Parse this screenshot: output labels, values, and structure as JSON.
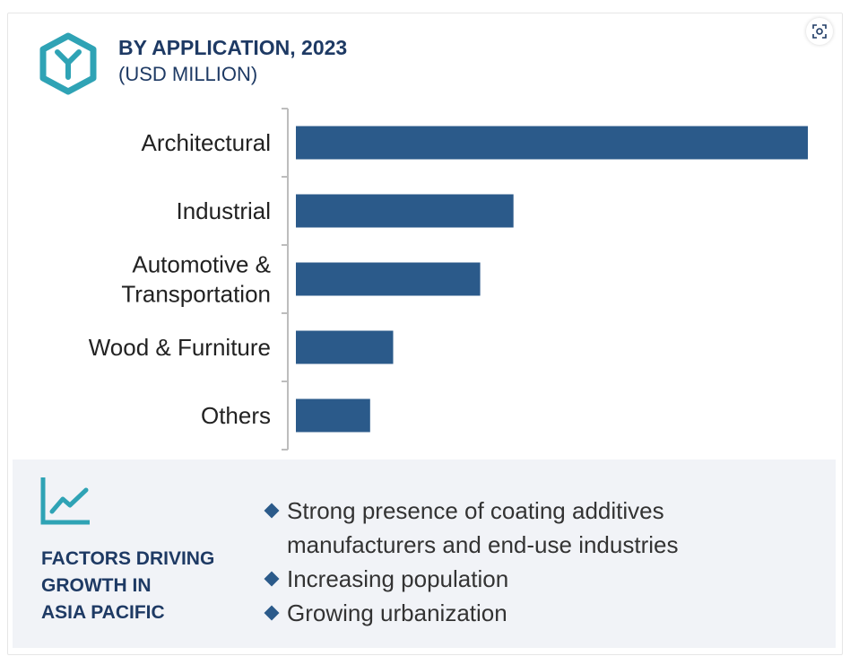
{
  "header": {
    "title": "BY APPLICATION, 2023",
    "subtitle": "(USD MILLION)"
  },
  "icons": {
    "brand": "hexagon-y-logo-icon",
    "zoom": "zoom-scan-icon",
    "growth": "line-chart-growth-icon"
  },
  "colors": {
    "bar": "#2b5a8a",
    "title": "#1e3a64",
    "logo": "#2fa3b5",
    "panel": "#f1f3f7"
  },
  "chart_data": {
    "type": "bar",
    "orientation": "horizontal",
    "title": "BY APPLICATION, 2023",
    "subtitle": "(USD MILLION)",
    "categories": [
      [
        "Architectural"
      ],
      [
        "Industrial"
      ],
      [
        "Automotive &",
        "Transportation"
      ],
      [
        "Wood & Furniture"
      ],
      [
        "Others"
      ]
    ],
    "values": [
      100,
      42.5,
      36,
      19,
      14.5
    ],
    "value_scale": "relative (no axis values printed)",
    "xlim": [
      0,
      100
    ],
    "grid": false,
    "legend": "none",
    "data_labels": false
  },
  "factors": {
    "title_lines": [
      "FACTORS DRIVING",
      "GROWTH IN",
      "ASIA PACIFIC"
    ],
    "items": [
      "Strong presence of coating additives manufacturers and end-use industries",
      "Increasing population",
      "Growing urbanization"
    ]
  }
}
